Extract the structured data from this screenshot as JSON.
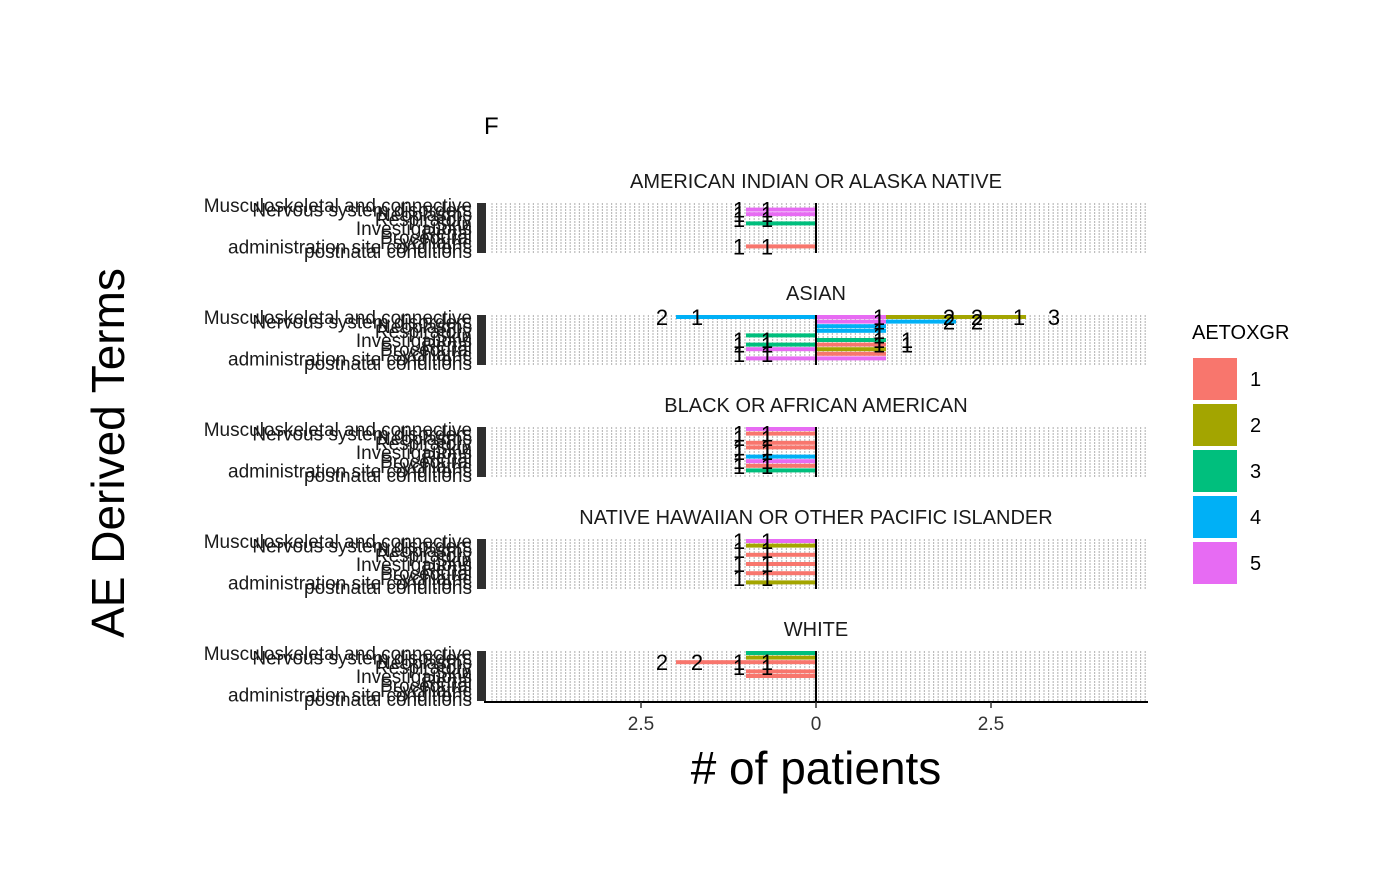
{
  "chart_data": {
    "type": "bar",
    "title": "F",
    "xlabel": "# of patients",
    "ylabel": "AE Derived Terms",
    "x_ticks": [
      "2.5",
      "0",
      "2.5"
    ],
    "x_tick_values": [
      -2.5,
      0,
      2.5
    ],
    "xlim": [
      -4.7,
      4.7
    ],
    "legend": {
      "title": "AETOXGR",
      "placement": "right",
      "items": [
        {
          "label": "1",
          "color": "#F8766D"
        },
        {
          "label": "2",
          "color": "#A3A500"
        },
        {
          "label": "3",
          "color": "#00BF7D"
        },
        {
          "label": "4",
          "color": "#00B0F6"
        },
        {
          "label": "5",
          "color": "#E76BF3"
        }
      ]
    },
    "y_categories": [
      "Musculoskeletal and connective",
      "Nervous system disorders",
      "Neoplasms",
      "Respiratory",
      "Skin",
      "Investigations",
      "Renal",
      "Procedural",
      "Psychiatric",
      "administration site conditions",
      "postnatal conditions"
    ],
    "panels": [
      {
        "name": "AMERICAN INDIAN OR ALASKA NATIVE",
        "bars": [
          {
            "row": 1,
            "start": -1,
            "value": 1,
            "grade": "5"
          },
          {
            "row": 2,
            "start": -1,
            "value": 1,
            "grade": "5"
          },
          {
            "row": 4,
            "start": -1,
            "value": 1,
            "grade": "3"
          },
          {
            "row": 9,
            "start": -1,
            "value": 1,
            "grade": "1"
          }
        ],
        "labels": [
          {
            "row": 1,
            "x": -1.1,
            "text": "1"
          },
          {
            "row": 1,
            "x": -0.7,
            "text": "1"
          },
          {
            "row": 2,
            "x": -1.1,
            "text": "1"
          },
          {
            "row": 2,
            "x": -0.7,
            "text": "1"
          },
          {
            "row": 3,
            "x": -1.1,
            "text": "1"
          },
          {
            "row": 3,
            "x": -0.7,
            "text": "1"
          },
          {
            "row": 9,
            "x": -1.1,
            "text": "1"
          },
          {
            "row": 9,
            "x": -0.7,
            "text": "1"
          }
        ]
      },
      {
        "name": "ASIAN",
        "bars": [
          {
            "row": 0,
            "start": -2,
            "value": 2,
            "grade": "4"
          },
          {
            "row": 0,
            "start": 0,
            "value": 1,
            "grade": "5"
          },
          {
            "row": 0,
            "start": 1,
            "value": 2,
            "grade": "2"
          },
          {
            "row": 1,
            "start": 0,
            "value": 1,
            "grade": "5"
          },
          {
            "row": 1,
            "start": 1,
            "value": 1,
            "grade": "4"
          },
          {
            "row": 2,
            "start": 0,
            "value": 1,
            "grade": "4"
          },
          {
            "row": 3,
            "start": 0,
            "value": 1,
            "grade": "4"
          },
          {
            "row": 4,
            "start": -1,
            "value": 1,
            "grade": "3"
          },
          {
            "row": 5,
            "start": 0,
            "value": 1,
            "grade": "3"
          },
          {
            "row": 6,
            "start": -1,
            "value": 1,
            "grade": "3"
          },
          {
            "row": 6,
            "start": 0,
            "value": 1,
            "grade": "1"
          },
          {
            "row": 7,
            "start": -1,
            "value": 1,
            "grade": "5"
          },
          {
            "row": 7,
            "start": 0,
            "value": 1,
            "grade": "2"
          },
          {
            "row": 8,
            "start": 0,
            "value": 1,
            "grade": "1"
          },
          {
            "row": 9,
            "start": -1,
            "value": 1,
            "grade": "5"
          },
          {
            "row": 9,
            "start": 0,
            "value": 1,
            "grade": "5"
          }
        ],
        "labels": [
          {
            "row": 0,
            "x": -2.2,
            "text": "2"
          },
          {
            "row": 0,
            "x": -1.7,
            "text": "1"
          },
          {
            "row": 0,
            "x": 0.9,
            "text": "1"
          },
          {
            "row": 0,
            "x": 1.9,
            "text": "2"
          },
          {
            "row": 0,
            "x": 2.3,
            "text": "2"
          },
          {
            "row": 0,
            "x": 2.9,
            "text": "1"
          },
          {
            "row": 0,
            "x": 3.4,
            "text": "3"
          },
          {
            "row": 1,
            "x": 0.9,
            "text": "1"
          },
          {
            "row": 1,
            "x": 1.9,
            "text": "2"
          },
          {
            "row": 1,
            "x": 2.3,
            "text": "2"
          },
          {
            "row": 3,
            "x": 0.9,
            "text": "1"
          },
          {
            "row": 4,
            "x": 0.9,
            "text": "1"
          },
          {
            "row": 5,
            "x": -1.1,
            "text": "1"
          },
          {
            "row": 5,
            "x": -0.7,
            "text": "1"
          },
          {
            "row": 5,
            "x": 0.9,
            "text": "1"
          },
          {
            "row": 5,
            "x": 1.3,
            "text": "1"
          },
          {
            "row": 6,
            "x": -1.1,
            "text": "1"
          },
          {
            "row": 6,
            "x": -0.7,
            "text": "1"
          },
          {
            "row": 6,
            "x": 0.9,
            "text": "1"
          },
          {
            "row": 6,
            "x": 1.3,
            "text": "1"
          },
          {
            "row": 8,
            "x": -1.1,
            "text": "1"
          },
          {
            "row": 8,
            "x": -0.7,
            "text": "1"
          }
        ]
      },
      {
        "name": "BLACK OR AFRICAN AMERICAN",
        "bars": [
          {
            "row": 0,
            "start": -1,
            "value": 1,
            "grade": "5"
          },
          {
            "row": 1,
            "start": -1,
            "value": 1,
            "grade": "1"
          },
          {
            "row": 3,
            "start": -1,
            "value": 1,
            "grade": "1"
          },
          {
            "row": 4,
            "start": -1,
            "value": 1,
            "grade": "1"
          },
          {
            "row": 6,
            "start": -1,
            "value": 1,
            "grade": "4"
          },
          {
            "row": 7,
            "start": -1,
            "value": 1,
            "grade": "5"
          },
          {
            "row": 8,
            "start": -1,
            "value": 1,
            "grade": "1"
          },
          {
            "row": 9,
            "start": -1,
            "value": 1,
            "grade": "3"
          }
        ],
        "labels": [
          {
            "row": 1,
            "x": -1.1,
            "text": "1"
          },
          {
            "row": 1,
            "x": -0.7,
            "text": "1"
          },
          {
            "row": 2,
            "x": -1.1,
            "text": "1"
          },
          {
            "row": 2,
            "x": -0.7,
            "text": "1"
          },
          {
            "row": 4,
            "x": -1.1,
            "text": "1"
          },
          {
            "row": 4,
            "x": -0.7,
            "text": "1"
          },
          {
            "row": 5,
            "x": -1.1,
            "text": "1"
          },
          {
            "row": 5,
            "x": -0.7,
            "text": "1"
          },
          {
            "row": 7,
            "x": -1.1,
            "text": "1"
          },
          {
            "row": 7,
            "x": -0.7,
            "text": "1"
          },
          {
            "row": 8,
            "x": -1.1,
            "text": "1"
          },
          {
            "row": 8,
            "x": -0.7,
            "text": "1"
          }
        ]
      },
      {
        "name": "NATIVE HAWAIIAN OR OTHER PACIFIC ISLANDER",
        "bars": [
          {
            "row": 0,
            "start": -1,
            "value": 1,
            "grade": "5"
          },
          {
            "row": 1,
            "start": -1,
            "value": 1,
            "grade": "2"
          },
          {
            "row": 3,
            "start": -1,
            "value": 1,
            "grade": "1"
          },
          {
            "row": 5,
            "start": -1,
            "value": 1,
            "grade": "1"
          },
          {
            "row": 7,
            "start": -1,
            "value": 1,
            "grade": "1"
          },
          {
            "row": 9,
            "start": -1,
            "value": 1,
            "grade": "2"
          }
        ],
        "labels": [
          {
            "row": 0,
            "x": -1.1,
            "text": "1"
          },
          {
            "row": 0,
            "x": -0.7,
            "text": "1"
          },
          {
            "row": 2,
            "x": -1.1,
            "text": "1"
          },
          {
            "row": 2,
            "x": -0.7,
            "text": "1"
          },
          {
            "row": 5,
            "x": -1.1,
            "text": "1"
          },
          {
            "row": 5,
            "x": -0.7,
            "text": "1"
          },
          {
            "row": 8,
            "x": -1.1,
            "text": "1"
          },
          {
            "row": 8,
            "x": -0.7,
            "text": "1"
          }
        ]
      },
      {
        "name": "WHITE",
        "bars": [
          {
            "row": 0,
            "start": -1,
            "value": 1,
            "grade": "3"
          },
          {
            "row": 1,
            "start": -1,
            "value": 1,
            "grade": "2"
          },
          {
            "row": 2,
            "start": -2,
            "value": 2,
            "grade": "1"
          },
          {
            "row": 4,
            "start": -1,
            "value": 1,
            "grade": "1"
          },
          {
            "row": 5,
            "start": -1,
            "value": 1,
            "grade": "1"
          }
        ],
        "labels": [
          {
            "row": 2,
            "x": -2.2,
            "text": "2"
          },
          {
            "row": 2,
            "x": -1.7,
            "text": "2"
          },
          {
            "row": 2,
            "x": -1.1,
            "text": "1"
          },
          {
            "row": 2,
            "x": -0.7,
            "text": "1"
          },
          {
            "row": 3,
            "x": -1.1,
            "text": "1"
          },
          {
            "row": 3,
            "x": -0.7,
            "text": "1"
          }
        ]
      }
    ]
  }
}
